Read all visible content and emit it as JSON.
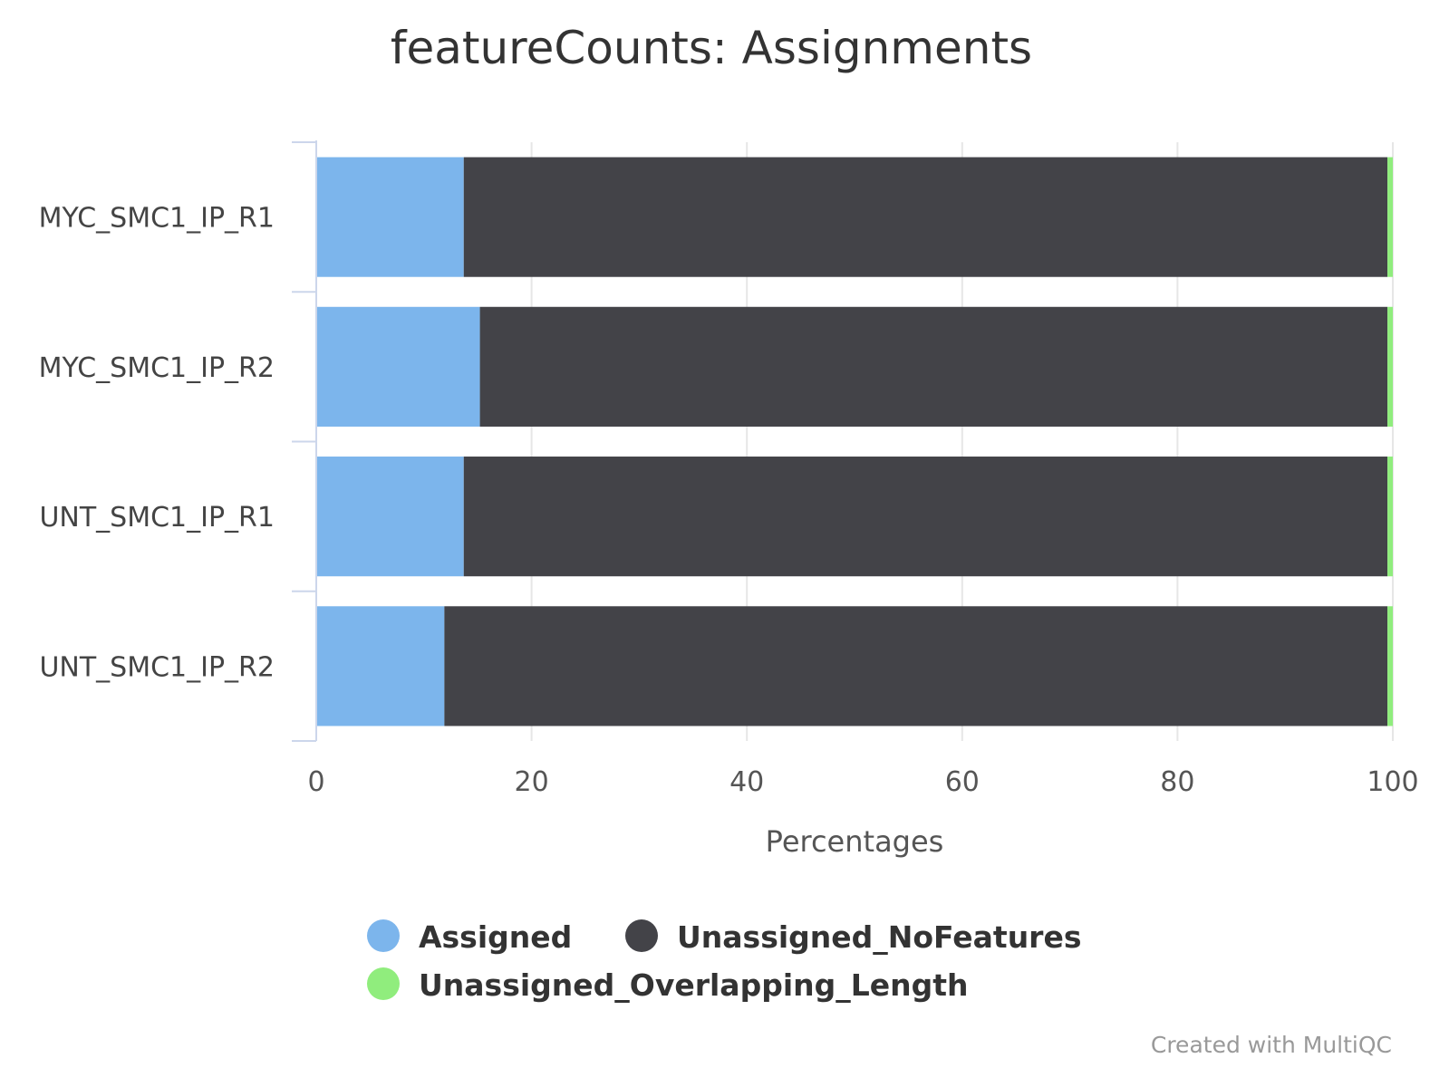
{
  "chart_data": {
    "type": "bar",
    "orientation": "horizontal",
    "stacked": true,
    "title": "featureCounts: Assignments",
    "xlabel": "Percentages",
    "ylabel": "",
    "xlim": [
      0,
      100
    ],
    "x_ticks": [
      "0",
      "20",
      "40",
      "60",
      "80",
      "100"
    ],
    "categories": [
      "MYC_SMC1_IP_R1",
      "MYC_SMC1_IP_R2",
      "UNT_SMC1_IP_R1",
      "UNT_SMC1_IP_R2"
    ],
    "series": [
      {
        "name": "Assigned",
        "color": "#7cb5ec",
        "values": [
          13.7,
          15.2,
          13.7,
          11.9
        ]
      },
      {
        "name": "Unassigned_NoFeatures",
        "color": "#434348",
        "values": [
          85.8,
          84.3,
          85.8,
          87.6
        ]
      },
      {
        "name": "Unassigned_Overlapping_Length",
        "color": "#90ed7d",
        "values": [
          0.5,
          0.5,
          0.5,
          0.5
        ]
      }
    ],
    "grid": true,
    "legend_position": "bottom-center",
    "credit": "Created with MultiQC"
  }
}
